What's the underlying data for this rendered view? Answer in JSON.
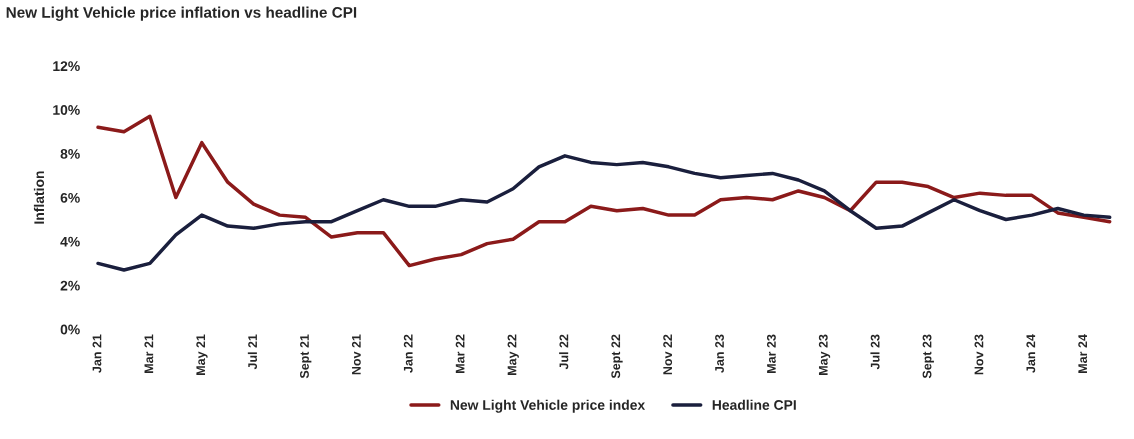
{
  "chart_data": {
    "type": "line",
    "title": "New Light Vehicle price inflation vs headline CPI",
    "ylabel": "Inflation",
    "categories": [
      "Jan 21",
      null,
      "Mar 21",
      null,
      "May 21",
      null,
      "Jul 21",
      null,
      "Sept 21",
      null,
      "Nov 21",
      null,
      "Jan 22",
      null,
      "Mar 22",
      null,
      "May 22",
      null,
      "Jul 22",
      null,
      "Sept 22",
      null,
      "Nov 22",
      null,
      "Jan 23",
      null,
      "Mar 23",
      null,
      "May 23",
      null,
      "Jul 23",
      null,
      "Sept 23",
      null,
      "Nov 23",
      null,
      "Jan 24",
      null,
      "Mar 24",
      null
    ],
    "series": [
      {
        "name": "New Light Vehicle price index",
        "color": "#8b1a1a",
        "values": [
          9.2,
          9.0,
          9.7,
          6.0,
          8.5,
          6.7,
          5.7,
          5.2,
          5.1,
          4.2,
          4.4,
          4.4,
          2.9,
          3.2,
          3.4,
          3.9,
          4.1,
          4.9,
          4.9,
          5.6,
          5.4,
          5.5,
          5.2,
          5.2,
          5.9,
          6.0,
          5.9,
          6.3,
          6.0,
          5.4,
          6.7,
          6.7,
          6.5,
          6.0,
          6.2,
          6.1,
          6.1,
          5.3,
          5.1,
          4.9
        ]
      },
      {
        "name": "Headline CPI",
        "color": "#1a1f3d",
        "values": [
          3.0,
          2.7,
          3.0,
          4.3,
          5.2,
          4.7,
          4.6,
          4.8,
          4.9,
          4.9,
          5.4,
          5.9,
          5.6,
          5.6,
          5.9,
          5.8,
          6.4,
          7.4,
          7.9,
          7.6,
          7.5,
          7.6,
          7.4,
          7.1,
          6.9,
          7.0,
          7.1,
          6.8,
          6.3,
          5.4,
          4.6,
          4.7,
          5.3,
          5.9,
          5.4,
          5.0,
          5.2,
          5.5,
          5.2,
          5.1
        ]
      }
    ],
    "ylim": [
      0,
      12
    ],
    "yticks": [
      {
        "value": 0,
        "label": "0%"
      },
      {
        "value": 2,
        "label": "2%"
      },
      {
        "value": 4,
        "label": "4%"
      },
      {
        "value": 6,
        "label": "6%"
      },
      {
        "value": 8,
        "label": "8%"
      },
      {
        "value": 10,
        "label": "10%"
      },
      {
        "value": 12,
        "label": "12%"
      }
    ],
    "legend": "bottom",
    "line_style": "solid",
    "marker": "none"
  }
}
